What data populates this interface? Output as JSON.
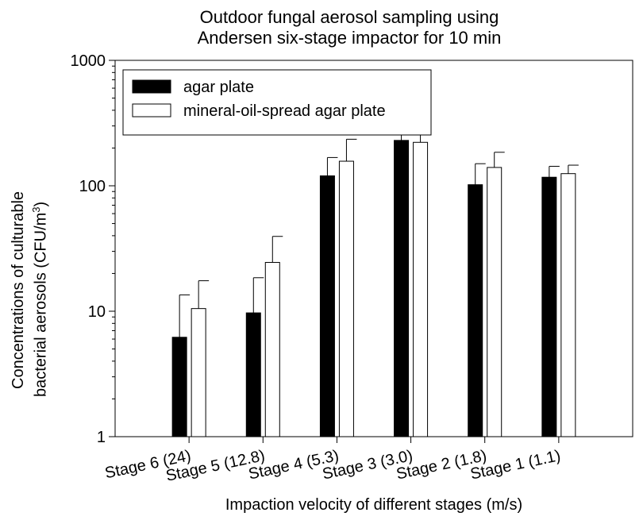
{
  "chart_data": {
    "type": "bar",
    "title_lines": [
      "Outdoor fungal aerosol sampling using",
      "Andersen six-stage impactor for 10 min"
    ],
    "xlabel": "Impaction velocity of different stages (m/s)",
    "ylabel_lines": [
      "Concentrations of culturable",
      "bacterial aerosols (CFU/m",
      "3",
      ")"
    ],
    "yscale": "log",
    "ylim": [
      1,
      1000
    ],
    "yticks": [
      1,
      10,
      100,
      1000
    ],
    "ytick_labels": [
      "1",
      "10",
      "100",
      "1000"
    ],
    "categories": [
      "Stage 6 (24)",
      "Stage 5 (12.8)",
      "Stage 4 (5.3)",
      "Stage 3 (3.0)",
      "Stage 2 (1.8)",
      "Stage 1 (1.1)"
    ],
    "series": [
      {
        "name": "agar plate",
        "color": "#000000",
        "values": [
          6.2,
          9.7,
          120,
          230,
          102,
          117
        ],
        "error_upper": [
          13.5,
          18.5,
          168,
          320,
          150,
          143
        ]
      },
      {
        "name": "mineral-oil-spread agar plate",
        "color": "#ffffff",
        "values": [
          10.5,
          24.5,
          157,
          222,
          140,
          125
        ],
        "error_upper": [
          17.5,
          39.5,
          235,
          300,
          185,
          146
        ]
      }
    ],
    "legend_position": "top-left",
    "grid": false
  }
}
